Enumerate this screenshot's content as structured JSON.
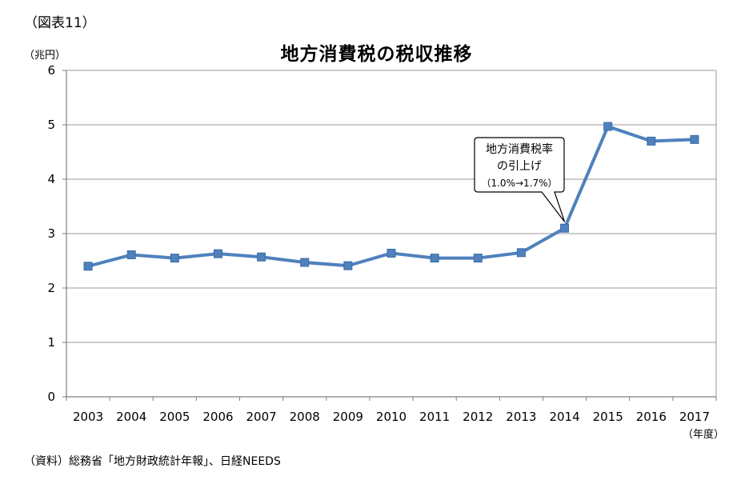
{
  "figure_label": "（図表11）",
  "source_note": "（資料）総務省「地方財政統計年報」、日経NEEDS",
  "chart_data": {
    "type": "line",
    "title": "地方消費税の税収推移",
    "ylabel": "（兆円）",
    "xlabel": "（年度）",
    "categories": [
      "2003",
      "2004",
      "2005",
      "2006",
      "2007",
      "2008",
      "2009",
      "2010",
      "2011",
      "2012",
      "2013",
      "2014",
      "2015",
      "2016",
      "2017"
    ],
    "series": [
      {
        "values": [
          2.4,
          2.61,
          2.55,
          2.63,
          2.57,
          2.47,
          2.41,
          2.64,
          2.55,
          2.55,
          2.65,
          3.1,
          4.97,
          4.7,
          4.73
        ]
      }
    ],
    "ylim": [
      0,
      6
    ],
    "yticks": [
      0,
      1,
      2,
      3,
      4,
      5,
      6
    ],
    "grid": true,
    "legend": "none",
    "color": "#4f81bd",
    "annotation": {
      "category": "2014",
      "lines": [
        "地方消費税率",
        "の引上げ",
        "（1.0%→1.7%）"
      ]
    }
  }
}
